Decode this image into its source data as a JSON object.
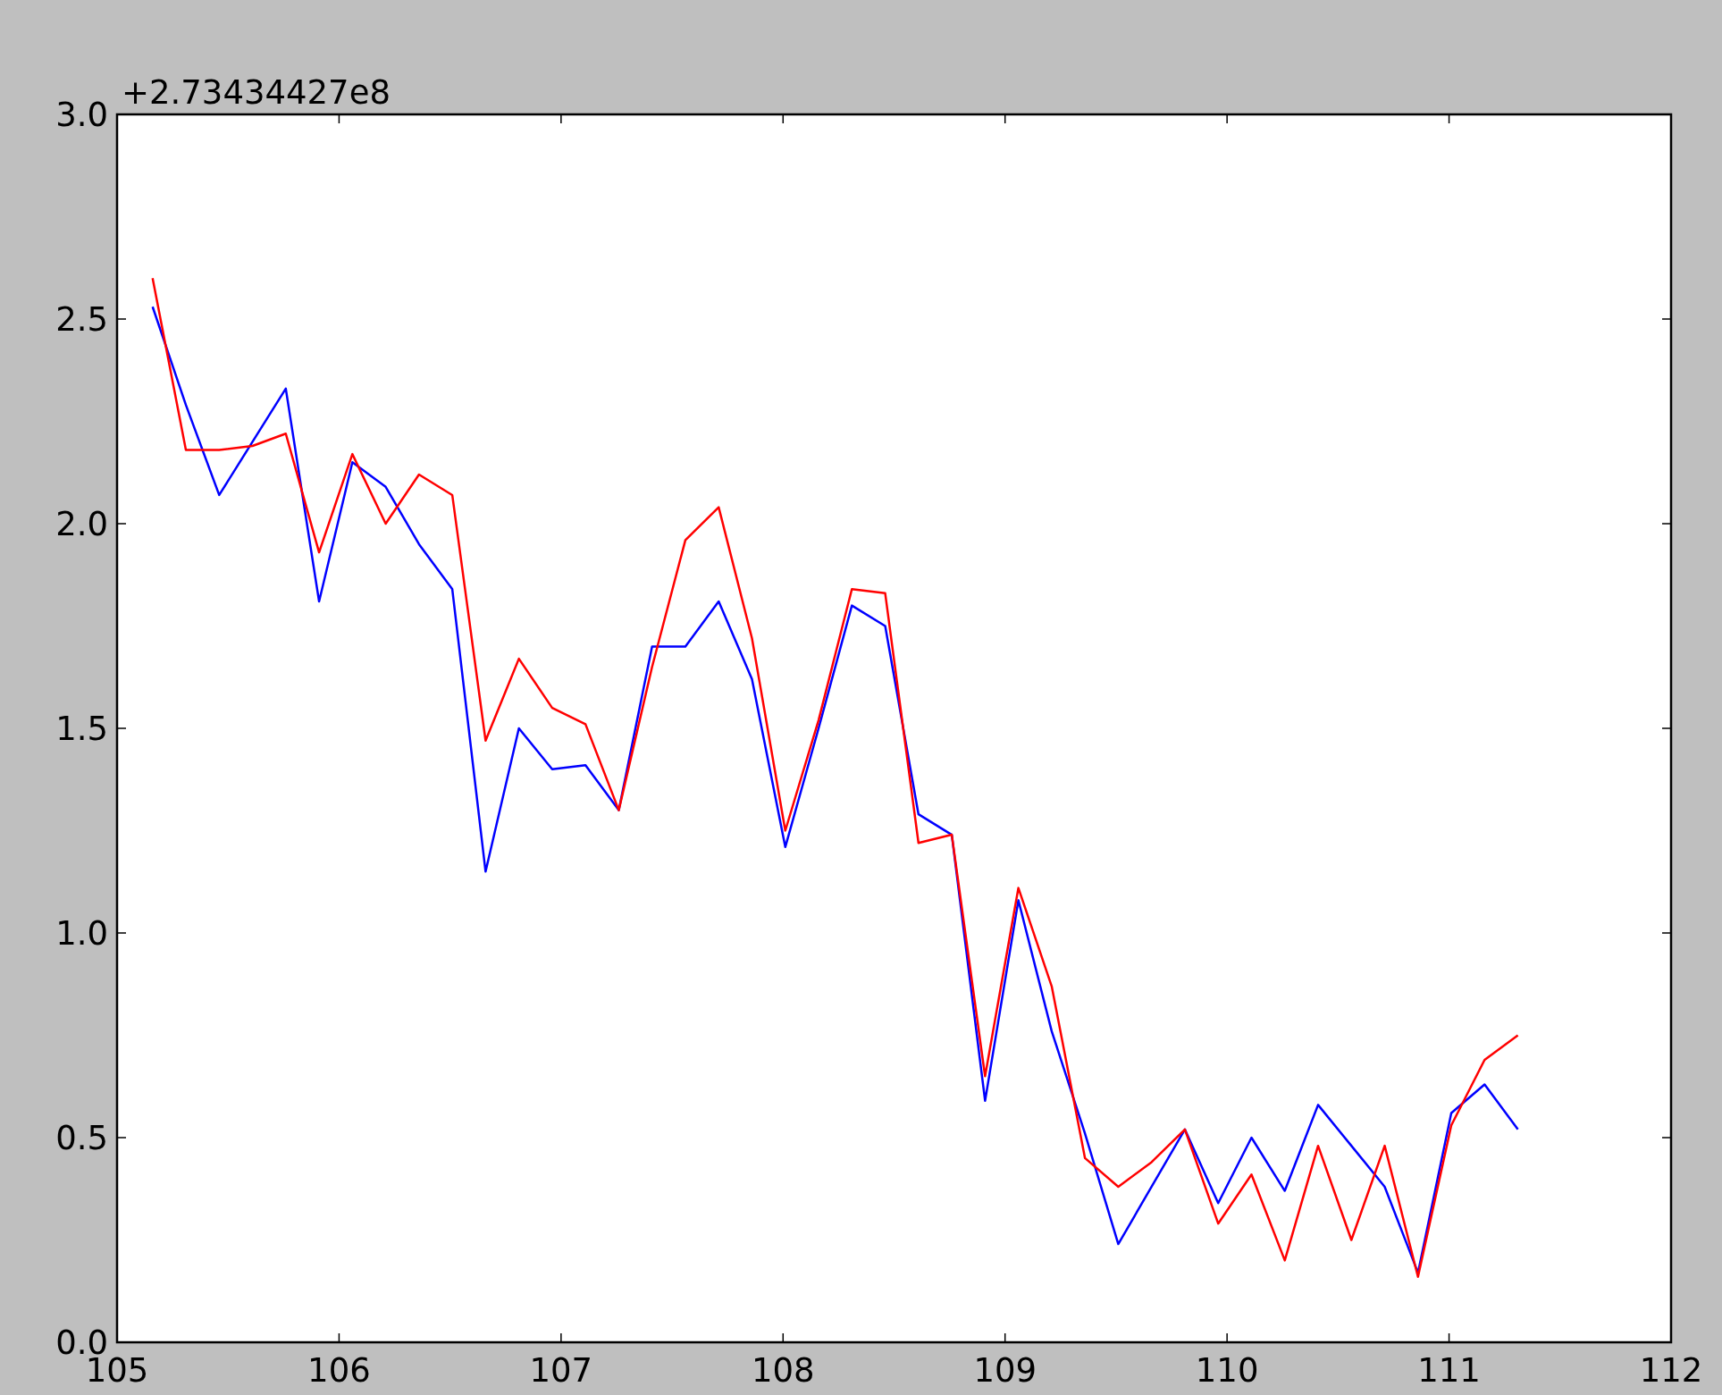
{
  "chart_data": {
    "type": "line",
    "annotations": [
      "+2.73434427e8"
    ],
    "x": [
      105.16,
      105.31,
      105.46,
      105.61,
      105.76,
      105.91,
      106.06,
      106.21,
      106.36,
      106.51,
      106.66,
      106.81,
      106.96,
      107.11,
      107.26,
      107.41,
      107.56,
      107.71,
      107.86,
      108.01,
      108.16,
      108.31,
      108.46,
      108.61,
      108.76,
      108.91,
      109.06,
      109.21,
      109.36,
      109.51,
      109.66,
      109.81,
      109.96,
      110.11,
      110.26,
      110.41,
      110.56,
      110.71,
      110.86,
      111.01,
      111.16,
      111.31
    ],
    "series": [
      {
        "color": "#0000ff",
        "values": [
          2.53,
          2.29,
          2.07,
          2.2,
          2.33,
          1.81,
          2.15,
          2.09,
          1.95,
          1.84,
          1.15,
          1.5,
          1.4,
          1.41,
          1.3,
          1.7,
          1.7,
          1.81,
          1.62,
          1.21,
          1.5,
          1.8,
          1.75,
          1.29,
          1.24,
          0.59,
          1.08,
          0.76,
          0.51,
          0.24,
          0.38,
          0.52,
          0.34,
          0.5,
          0.37,
          0.58,
          0.48,
          0.38,
          0.17,
          0.56,
          0.63,
          0.52
        ]
      },
      {
        "color": "#ff0000",
        "values": [
          2.6,
          2.18,
          2.18,
          2.19,
          2.22,
          1.93,
          2.17,
          2,
          2.12,
          2.07,
          1.47,
          1.67,
          1.55,
          1.51,
          1.3,
          1.65,
          1.96,
          2.04,
          1.72,
          1.25,
          1.52,
          1.84,
          1.83,
          1.22,
          1.24,
          0.65,
          1.11,
          0.87,
          0.45,
          0.38,
          0.44,
          0.52,
          0.29,
          0.41,
          0.2,
          0.48,
          0.25,
          0.48,
          0.16,
          0.53,
          0.69,
          0.75
        ]
      }
    ],
    "xlim": [
      105,
      112
    ],
    "xticks": [
      105,
      106,
      107,
      108,
      109,
      110,
      111,
      112
    ],
    "ylim": [
      0,
      3
    ],
    "yticks": [
      {
        "value": 0,
        "label": "0.0"
      },
      {
        "value": 0.5,
        "label": "0.5"
      },
      {
        "value": 1,
        "label": "1.0"
      },
      {
        "value": 1.5,
        "label": "1.5"
      },
      {
        "value": 2,
        "label": "2.0"
      },
      {
        "value": 2.5,
        "label": "2.5"
      },
      {
        "value": 3,
        "label": "3.0"
      }
    ],
    "grid": false,
    "line_style": "solid"
  }
}
